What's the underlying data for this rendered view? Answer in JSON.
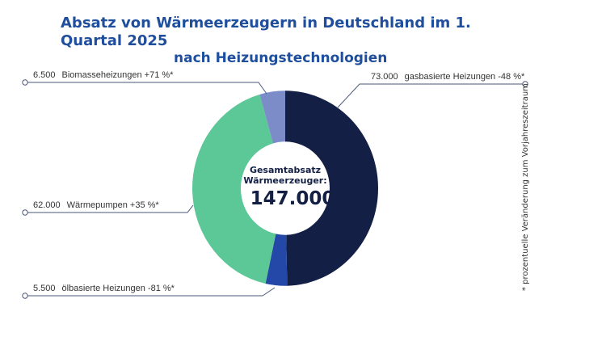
{
  "chart_data": {
    "type": "pie",
    "title": "Absatz von Wärmeerzeugern in Deutschland im 1. Quartal 2025",
    "subtitle": "nach Heizungstechnologien",
    "center_label": "Gesamtabsatz Wärmeerzeuger:",
    "center_value": "147.000",
    "slices": [
      {
        "name": "gasbasierte Heizungen",
        "value": 73000,
        "value_label": "73.000",
        "change": "-48 %*",
        "color": "#131f45"
      },
      {
        "name": "ölbasierte Heizungen",
        "value": 5500,
        "value_label": "5.500",
        "change": "-81 %*",
        "color": "#2448a8"
      },
      {
        "name": "Wärmepumpen",
        "value": 62000,
        "value_label": "62.000",
        "change": "+35 %*",
        "color": "#5cc797"
      },
      {
        "name": "Biomasseheizungen",
        "value": 6500,
        "value_label": "6.500",
        "change": "+71 %*",
        "color": "#7b8cc9"
      }
    ],
    "footnote": "* prozentuelle Veränderung zum Vorjahreszeitraum"
  }
}
